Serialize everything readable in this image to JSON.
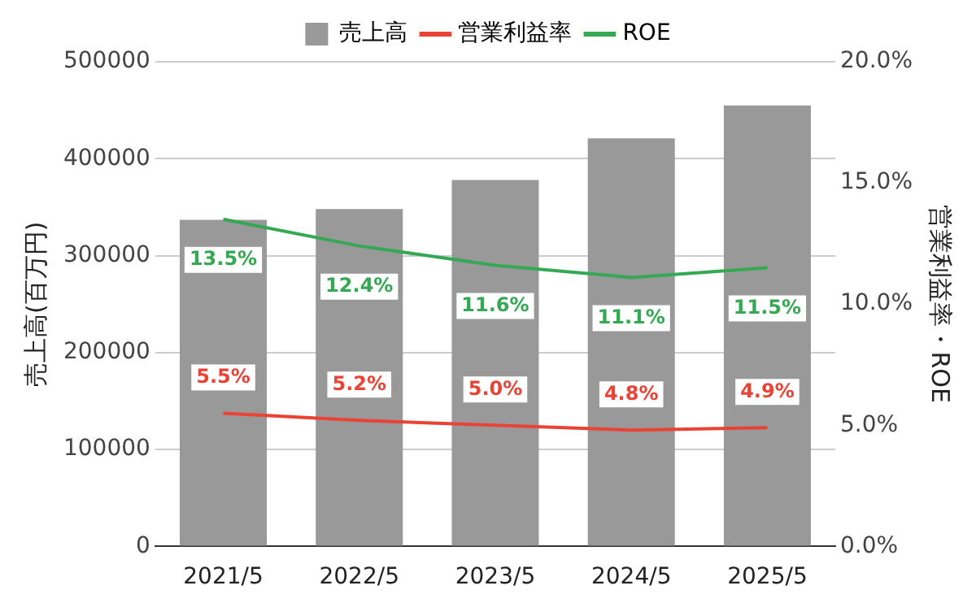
{
  "chart_data": {
    "type": "bar",
    "categories": [
      "2021/5",
      "2022/5",
      "2023/5",
      "2024/5",
      "2025/5"
    ],
    "ylabel": "売上高(百万円)",
    "y2label": "営業利益率・ROE",
    "series": [
      {
        "name": "売上高",
        "color": "#999999",
        "values": [
          337000,
          348000,
          378000,
          421000,
          455000
        ]
      },
      {
        "name": "営業利益率",
        "type": "line",
        "axis": "y2",
        "color": "#ea4335",
        "values": [
          5.5,
          5.2,
          5.0,
          4.8,
          4.9
        ],
        "value_labels": [
          "5.5%",
          "5.2%",
          "5.0%",
          "4.8%",
          "4.9%"
        ]
      },
      {
        "name": "ROE",
        "type": "line",
        "axis": "y2",
        "color": "#34a853",
        "values": [
          13.5,
          12.4,
          11.6,
          11.1,
          11.5
        ],
        "value_labels": [
          "13.5%",
          "12.4%",
          "11.6%",
          "11.1%",
          "11.5%"
        ]
      }
    ],
    "ylim": [
      0,
      500000
    ],
    "yticks": [
      0,
      100000,
      200000,
      300000,
      400000,
      500000
    ],
    "y2lim": [
      0,
      20
    ],
    "y2ticks": [
      {
        "value": 0,
        "label": "0.0%"
      },
      {
        "value": 5,
        "label": "5.0%"
      },
      {
        "value": 10,
        "label": "10.0%"
      },
      {
        "value": 15,
        "label": "15.0%"
      },
      {
        "value": 20,
        "label": "20.0%"
      }
    ],
    "grid": "y",
    "legend": "top",
    "marker": "none"
  }
}
